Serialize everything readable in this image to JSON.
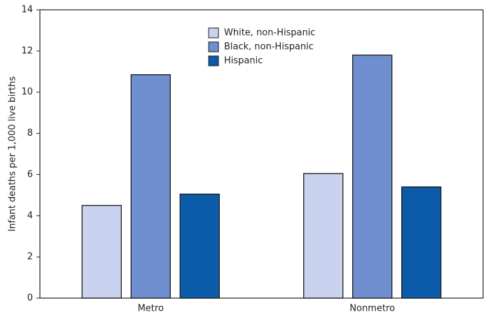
{
  "chart_data": {
    "type": "bar",
    "y_label": "Infant deaths per 1,000 live births",
    "categories": [
      "Metro",
      "Nonmetro"
    ],
    "series": [
      {
        "name": "White, non-Hispanic",
        "color": "#c9d3ef",
        "values": [
          4.5,
          6.05
        ]
      },
      {
        "name": "Black, non-Hispanic",
        "color": "#6f8fd0",
        "values": [
          10.85,
          11.8
        ]
      },
      {
        "name": "Hispanic",
        "color": "#0b5ba9",
        "values": [
          5.05,
          5.4
        ]
      }
    ],
    "ylim": [
      0,
      14
    ],
    "yticks": [
      0,
      2,
      4,
      6,
      8,
      10,
      12,
      14
    ],
    "legend": "top-center"
  }
}
